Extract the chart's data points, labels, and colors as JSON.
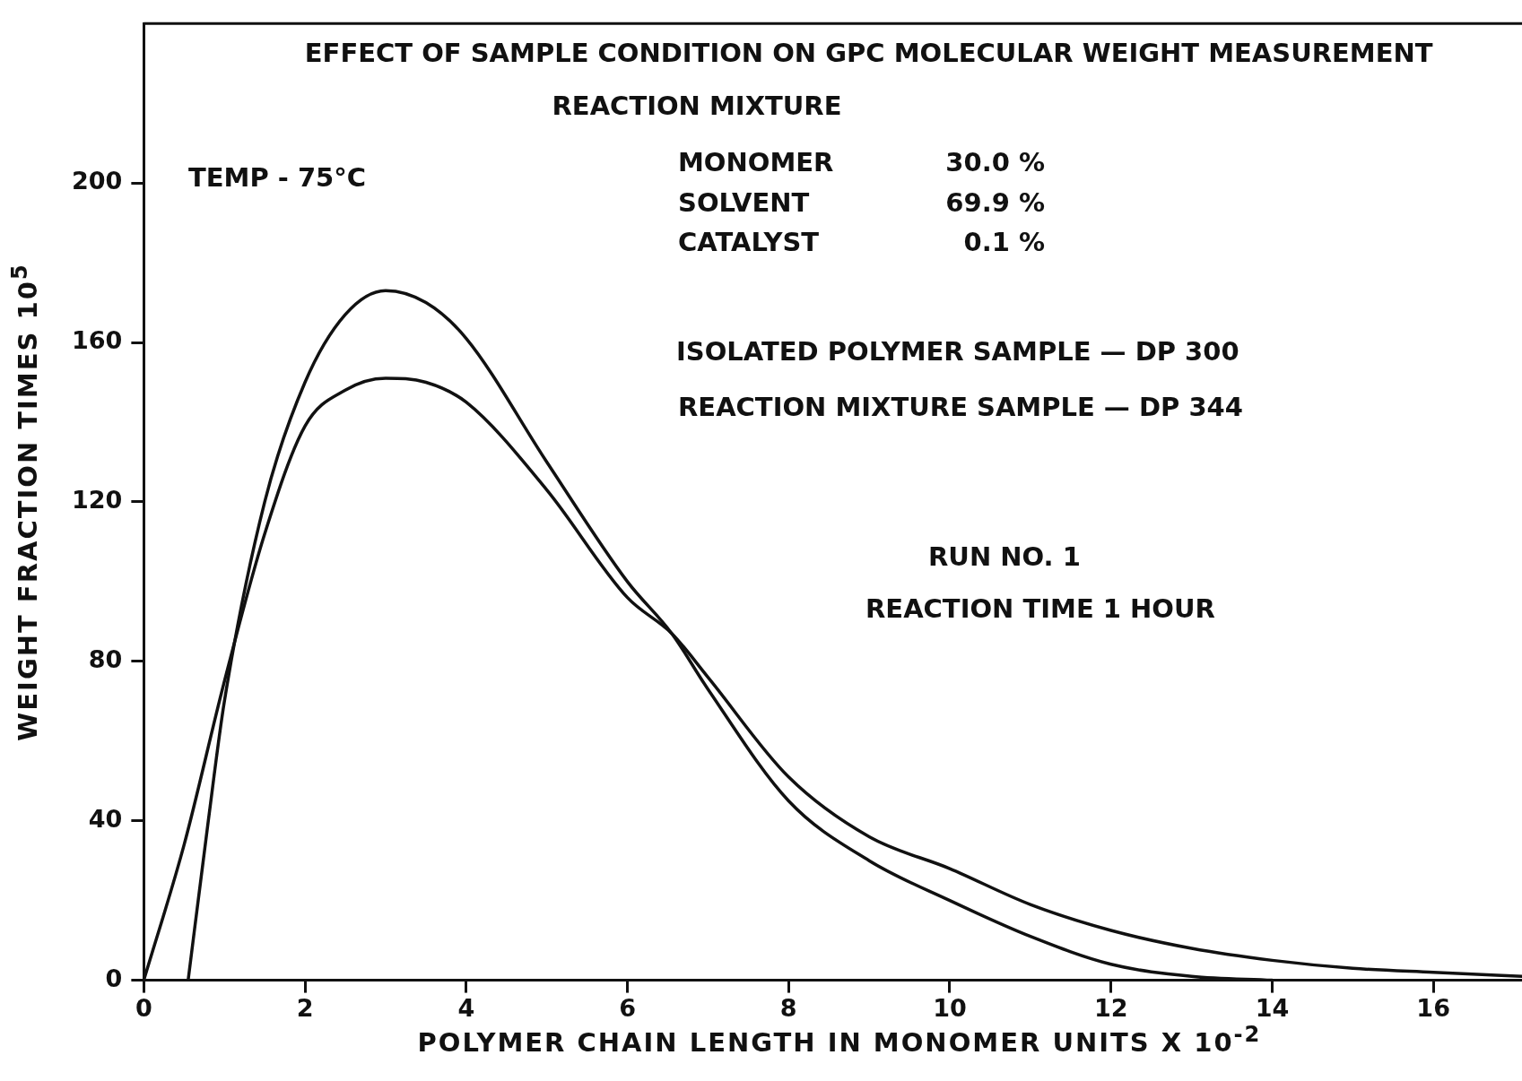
{
  "chart_data": {
    "type": "line",
    "title": "EFFECT OF SAMPLE CONDITION ON GPC MOLECULAR WEIGHT MEASUREMENT",
    "xlabel": "POLYMER CHAIN LENGTH IN MONOMER UNITS X 10$^{-2}$",
    "ylabel": "WEIGHT FRACTION TIMES 10$^{5}$",
    "xlim": [
      0,
      17.1
    ],
    "ylim": [
      0,
      240
    ],
    "xticks": [
      0,
      2,
      4,
      6,
      8,
      10,
      12,
      14,
      16
    ],
    "yticks": [
      0,
      40,
      80,
      120,
      160,
      200
    ],
    "grid": false,
    "legend": false,
    "marker": "none",
    "line_style": "solid",
    "annotations": [
      "TEMP - 75°C",
      "REACTION MIXTURE",
      "MONOMER",
      "30.0 %",
      "SOLVENT",
      "69.9 %",
      "CATALYST",
      "0.1 %",
      "ISOLATED POLYMER SAMPLE — DP 300",
      "REACTION MIXTURE SAMPLE — DP 344",
      "RUN NO. 1",
      "REACTION TIME 1 HOUR"
    ],
    "series": [
      {
        "color": "#111111",
        "x": [
          0.55,
          0.8,
          1,
          1.5,
          2,
          2.5,
          3,
          3.5,
          4,
          5,
          6,
          6.55,
          7,
          8,
          9,
          10,
          11,
          12,
          13,
          14
        ],
        "values": [
          0,
          40,
          70,
          120,
          150,
          167,
          173,
          170,
          161,
          130,
          100,
          87,
          73,
          45,
          30,
          20,
          11,
          4,
          1,
          0
        ]
      },
      {
        "color": "#111111",
        "x": [
          0,
          0.5,
          1,
          1.5,
          2,
          2.5,
          3,
          3.5,
          4,
          5,
          6,
          6.55,
          7,
          8,
          9,
          10,
          11,
          12,
          13,
          14,
          15,
          16,
          17.1
        ],
        "values": [
          0,
          34,
          75,
          112,
          139,
          148,
          151,
          150,
          145,
          123,
          96,
          87,
          76,
          51,
          36,
          28,
          19,
          12.5,
          8,
          5,
          3,
          2,
          1
        ]
      }
    ]
  }
}
